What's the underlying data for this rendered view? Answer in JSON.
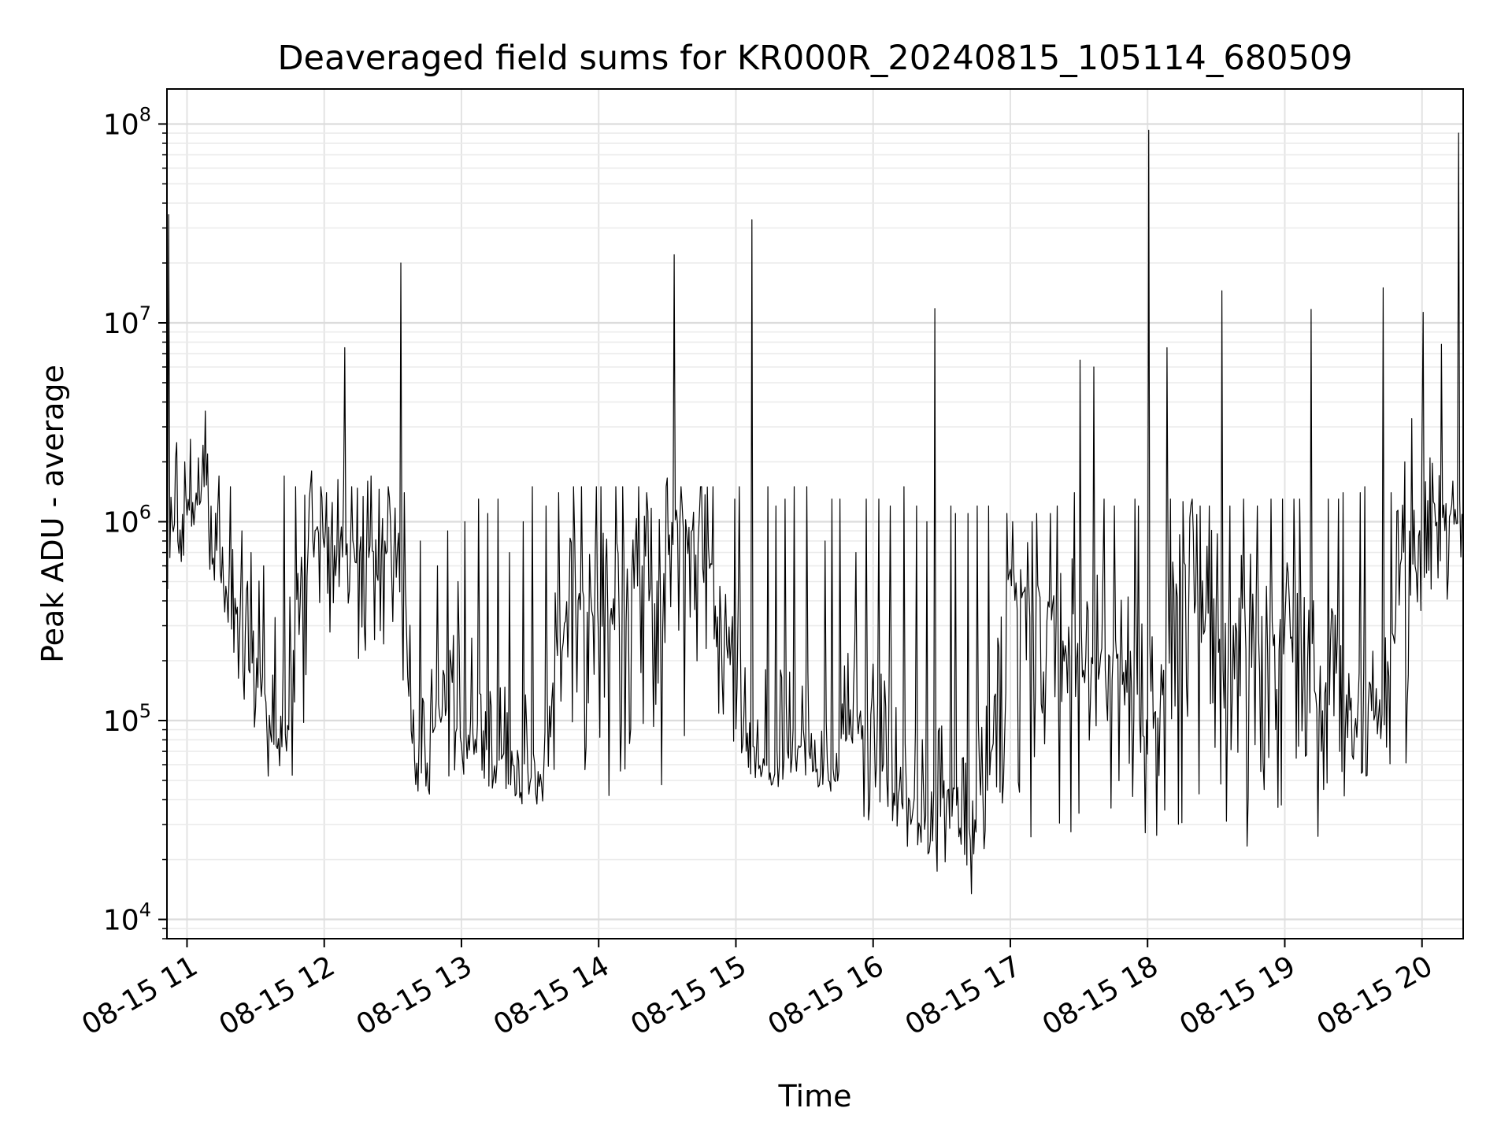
{
  "chart_data": {
    "type": "line",
    "title": "Deaveraged field sums for KR000R_20240815_105114_680509",
    "xlabel": "Time",
    "ylabel": "Peak ADU - average",
    "yscale": "log",
    "ylim": [
      8000,
      150000000
    ],
    "xlim": [
      "2024-08-15T10:51:14",
      "2024-08-15T20:18:00"
    ],
    "grid": true,
    "line_color": "#000000",
    "x_ticks": [
      {
        "value": "2024-08-15T11:00",
        "label": "08-15 11"
      },
      {
        "value": "2024-08-15T12:00",
        "label": "08-15 12"
      },
      {
        "value": "2024-08-15T13:00",
        "label": "08-15 13"
      },
      {
        "value": "2024-08-15T14:00",
        "label": "08-15 14"
      },
      {
        "value": "2024-08-15T15:00",
        "label": "08-15 15"
      },
      {
        "value": "2024-08-15T16:00",
        "label": "08-15 16"
      },
      {
        "value": "2024-08-15T17:00",
        "label": "08-15 17"
      },
      {
        "value": "2024-08-15T18:00",
        "label": "08-15 18"
      },
      {
        "value": "2024-08-15T19:00",
        "label": "08-15 19"
      },
      {
        "value": "2024-08-15T20:00",
        "label": "08-15 20"
      }
    ],
    "y_ticks": [
      {
        "value": 10000,
        "base": "10",
        "exp": "4"
      },
      {
        "value": 100000,
        "base": "10",
        "exp": "5"
      },
      {
        "value": 1000000,
        "base": "10",
        "exp": "6"
      },
      {
        "value": 10000000,
        "base": "10",
        "exp": "7"
      },
      {
        "value": 100000000,
        "base": "10",
        "exp": "8"
      }
    ],
    "series": [
      {
        "x": [
          "2024-08-15T10:51",
          "2024-08-15T10:53",
          "2024-08-15T10:56",
          "2024-08-15T11:00",
          "2024-08-15T11:05",
          "2024-08-15T11:10",
          "2024-08-15T11:15",
          "2024-08-15T11:20",
          "2024-08-15T11:25",
          "2024-08-15T11:30",
          "2024-08-15T11:35",
          "2024-08-15T11:40",
          "2024-08-15T11:45",
          "2024-08-15T11:50",
          "2024-08-15T11:55",
          "2024-08-15T12:00",
          "2024-08-15T12:05",
          "2024-08-15T12:10",
          "2024-08-15T12:15",
          "2024-08-15T12:20",
          "2024-08-15T12:25",
          "2024-08-15T12:30",
          "2024-08-15T12:35",
          "2024-08-15T12:40",
          "2024-08-15T12:45",
          "2024-08-15T12:50",
          "2024-08-15T12:55",
          "2024-08-15T13:00",
          "2024-08-15T13:05",
          "2024-08-15T13:10",
          "2024-08-15T13:15",
          "2024-08-15T13:20",
          "2024-08-15T13:25",
          "2024-08-15T13:30",
          "2024-08-15T13:35",
          "2024-08-15T13:40",
          "2024-08-15T13:45",
          "2024-08-15T13:50",
          "2024-08-15T13:55",
          "2024-08-15T14:00",
          "2024-08-15T14:05",
          "2024-08-15T14:10",
          "2024-08-15T14:15",
          "2024-08-15T14:20",
          "2024-08-15T14:25",
          "2024-08-15T14:30",
          "2024-08-15T14:35",
          "2024-08-15T14:40",
          "2024-08-15T14:45",
          "2024-08-15T14:50",
          "2024-08-15T14:55",
          "2024-08-15T15:00",
          "2024-08-15T15:05",
          "2024-08-15T15:10",
          "2024-08-15T15:15",
          "2024-08-15T15:20",
          "2024-08-15T15:25",
          "2024-08-15T15:30",
          "2024-08-15T15:35",
          "2024-08-15T15:40",
          "2024-08-15T15:45",
          "2024-08-15T15:50",
          "2024-08-15T15:55",
          "2024-08-15T16:00",
          "2024-08-15T16:05",
          "2024-08-15T16:10",
          "2024-08-15T16:15",
          "2024-08-15T16:20",
          "2024-08-15T16:25",
          "2024-08-15T16:30",
          "2024-08-15T16:35",
          "2024-08-15T16:40",
          "2024-08-15T16:45",
          "2024-08-15T16:50",
          "2024-08-15T16:55",
          "2024-08-15T17:00",
          "2024-08-15T17:05",
          "2024-08-15T17:10",
          "2024-08-15T17:15",
          "2024-08-15T17:20",
          "2024-08-15T17:25",
          "2024-08-15T17:30",
          "2024-08-15T17:35",
          "2024-08-15T17:40",
          "2024-08-15T17:45",
          "2024-08-15T17:50",
          "2024-08-15T17:55",
          "2024-08-15T18:00",
          "2024-08-15T18:05",
          "2024-08-15T18:10",
          "2024-08-15T18:15",
          "2024-08-15T18:20",
          "2024-08-15T18:25",
          "2024-08-15T18:30",
          "2024-08-15T18:35",
          "2024-08-15T18:40",
          "2024-08-15T18:45",
          "2024-08-15T18:50",
          "2024-08-15T18:55",
          "2024-08-15T19:00",
          "2024-08-15T19:05",
          "2024-08-15T19:10",
          "2024-08-15T19:15",
          "2024-08-15T19:20",
          "2024-08-15T19:25",
          "2024-08-15T19:30",
          "2024-08-15T19:35",
          "2024-08-15T19:40",
          "2024-08-15T19:45",
          "2024-08-15T19:50",
          "2024-08-15T19:55",
          "2024-08-15T20:00",
          "2024-08-15T20:05",
          "2024-08-15T20:10",
          "2024-08-15T20:15",
          "2024-08-15T20:18"
        ],
        "mid": [
          300000,
          1100000,
          1000000,
          1300000,
          1500000,
          800000,
          600000,
          300000,
          250000,
          250000,
          100000,
          80000,
          150000,
          500000,
          800000,
          700000,
          900000,
          700000,
          600000,
          800000,
          600000,
          700000,
          200000,
          60000,
          80000,
          120000,
          100000,
          80000,
          90000,
          60000,
          55000,
          55000,
          50000,
          45000,
          50000,
          200000,
          300000,
          400000,
          350000,
          500000,
          400000,
          350000,
          450000,
          500000,
          400000,
          800000,
          900000,
          850000,
          700000,
          500000,
          300000,
          150000,
          80000,
          70000,
          60000,
          65000,
          70000,
          80000,
          60000,
          50000,
          60000,
          80000,
          100000,
          70000,
          60000,
          50000,
          40000,
          30000,
          25000,
          40000,
          35000,
          30000,
          35000,
          40000,
          250000,
          500000,
          450000,
          400000,
          350000,
          300000,
          250000,
          200000,
          150000,
          250000,
          200000,
          150000,
          120000,
          100000,
          130000,
          200000,
          500000,
          400000,
          350000,
          300000,
          250000,
          300000,
          250000,
          200000,
          220000,
          250000,
          200000,
          180000,
          150000,
          140000,
          120000,
          100000,
          90000,
          80000,
          150000,
          500000,
          700000,
          900000,
          1100000,
          900000,
          1000000,
          1100000
        ],
        "lo": [
          270000,
          750000,
          600000,
          900000,
          1000000,
          500000,
          300000,
          150000,
          90000,
          100000,
          50000,
          50000,
          45000,
          80000,
          300000,
          250000,
          400000,
          300000,
          200000,
          250000,
          150000,
          100000,
          60000,
          42000,
          40000,
          50000,
          50000,
          48000,
          50000,
          45000,
          42000,
          40000,
          38000,
          37000,
          38000,
          45000,
          50000,
          45000,
          40000,
          36000,
          45000,
          40000,
          45000,
          40000,
          45000,
          60000,
          70000,
          80000,
          60000,
          50000,
          45000,
          55000,
          50000,
          48000,
          45000,
          48000,
          50000,
          50000,
          45000,
          40000,
          38000,
          35000,
          30000,
          30000,
          28000,
          25000,
          20000,
          18000,
          12000,
          18000,
          17000,
          13000,
          18000,
          18000,
          20000,
          30000,
          25000,
          25000,
          24000,
          25000,
          25000,
          26000,
          27000,
          28000,
          25000,
          24000,
          26000,
          25000,
          20000,
          25000,
          25000,
          24000,
          23000,
          24000,
          25000,
          20000,
          28000,
          26000,
          30000,
          28000,
          25000,
          26000,
          40000,
          35000,
          37000,
          40000,
          45000,
          35000,
          40000,
          60000,
          200000,
          400000,
          500000,
          400000,
          600000,
          350000
        ],
        "hi": [
          35000000,
          2500000,
          2000000,
          2600000,
          3600000,
          1700000,
          1500000,
          900000,
          700000,
          600000,
          330000,
          1700000,
          1500000,
          1800000,
          1500000,
          1400000,
          7500000,
          1500000,
          1600000,
          1700000,
          1500000,
          20000000,
          1400000,
          800000,
          600000,
          900000,
          500000,
          1000000,
          1300000,
          1100000,
          1300000,
          700000,
          1000000,
          1500000,
          1200000,
          1400000,
          1500000,
          1500000,
          1500000,
          1500000,
          1500000,
          1500000,
          1500000,
          1400000,
          1500000,
          22000000,
          1500000,
          1500000,
          1500000,
          1500000,
          1300000,
          1500000,
          33000000,
          1500000,
          1200000,
          1300000,
          1500000,
          1500000,
          800000,
          1300000,
          1300000,
          700000,
          1300000,
          1300000,
          1200000,
          1500000,
          1200000,
          1000000,
          11800000,
          1200000,
          1100000,
          1100000,
          1200000,
          1200000,
          1100000,
          1000000,
          1000000,
          1100000,
          1100000,
          1200000,
          1400000,
          6500000,
          6000000,
          1300000,
          1200000,
          1300000,
          1200000,
          93000000,
          7500000,
          1300000,
          1300000,
          1200000,
          1200000,
          14500000,
          1200000,
          1300000,
          1200000,
          1300000,
          1300000,
          1300000,
          1300000,
          11700000,
          1300000,
          1300000,
          1400000,
          1400000,
          1500000,
          15000000,
          1400000,
          2000000,
          3300000,
          11300000,
          7800000,
          1600000,
          90000000,
          1400000
        ]
      }
    ]
  }
}
